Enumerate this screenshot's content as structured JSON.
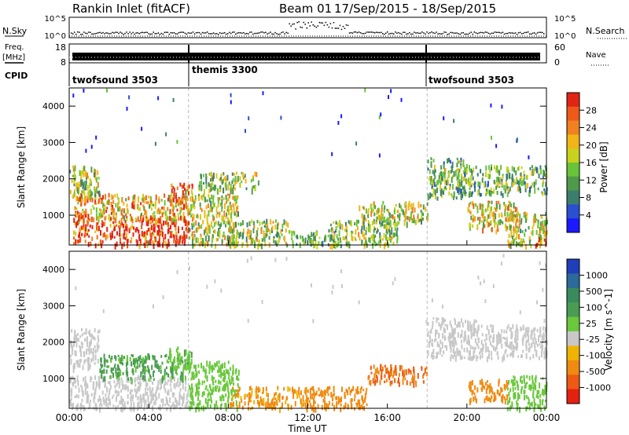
{
  "header": {
    "station": "Rankin Inlet (fitACF)",
    "beam": "Beam 01",
    "dates": "17/Sep/2015 - 18/Sep/2015"
  },
  "summary_panels": {
    "nsky": {
      "label": "N.Sky",
      "left_ticks": [
        "10^5",
        "10^0"
      ],
      "right_ticks": [
        "10^5",
        "10^0"
      ],
      "right_label": "N.Search"
    },
    "freq": {
      "label_line1": "Freq.",
      "label_line2": "[MHz]",
      "left_ticks": [
        "18",
        "8"
      ],
      "right_ticks": [
        "60",
        "0"
      ],
      "right_label": "Nave"
    },
    "cpid": {
      "label": "CPID",
      "segments": [
        {
          "name": "twofsound 3503",
          "start_hour": 0,
          "end_hour": 6
        },
        {
          "name": "themis 3300",
          "start_hour": 6,
          "end_hour": 18
        },
        {
          "name": "twofsound 3503",
          "start_hour": 18,
          "end_hour": 24
        }
      ]
    }
  },
  "x_axis": {
    "label": "Time UT",
    "ticks": [
      "00:00",
      "04:00",
      "08:00",
      "12:00",
      "16:00",
      "20:00",
      "00:00"
    ]
  },
  "chart_data": [
    {
      "type": "heatmap",
      "name": "power",
      "ylabel": "Slant Range [km]",
      "yticks": [
        "1000",
        "2000",
        "3000",
        "4000"
      ],
      "ylim": [
        180,
        4500
      ],
      "xlim_hours": [
        0,
        24
      ],
      "colorbar": {
        "label": "Power [dB]",
        "ticks": [
          "4",
          "8",
          "12",
          "16",
          "20",
          "24",
          "28"
        ],
        "colors": [
          "#1a1aff",
          "#2a4fd0",
          "#3c7e6e",
          "#4f9a4a",
          "#6ac43a",
          "#c8d21e",
          "#f2b418",
          "#f08020",
          "#ee5a18",
          "#e22414"
        ]
      },
      "regions": [
        {
          "t0": 0.2,
          "t1": 6.0,
          "r0": 200,
          "r1": 1000,
          "value": 28
        },
        {
          "t0": 0.2,
          "t1": 2.0,
          "r0": 900,
          "r1": 1700,
          "value": 22
        },
        {
          "t0": 0.0,
          "t1": 1.5,
          "r0": 1500,
          "r1": 2400,
          "value": 14
        },
        {
          "t0": 2.0,
          "t1": 6.0,
          "r0": 900,
          "r1": 1600,
          "value": 20
        },
        {
          "t0": 5.0,
          "t1": 6.2,
          "r0": 1300,
          "r1": 1900,
          "value": 24
        },
        {
          "t0": 6.0,
          "t1": 8.5,
          "r0": 200,
          "r1": 1600,
          "value": 16
        },
        {
          "t0": 6.5,
          "t1": 9.5,
          "r0": 1700,
          "r1": 2200,
          "value": 14
        },
        {
          "t0": 8.0,
          "t1": 11.0,
          "r0": 200,
          "r1": 900,
          "value": 14
        },
        {
          "t0": 11.0,
          "t1": 13.5,
          "r0": 200,
          "r1": 600,
          "value": 12
        },
        {
          "t0": 13.0,
          "t1": 16.5,
          "r0": 200,
          "r1": 900,
          "value": 14
        },
        {
          "t0": 14.5,
          "t1": 18.0,
          "r0": 800,
          "r1": 1400,
          "value": 16
        },
        {
          "t0": 18.0,
          "t1": 20.0,
          "r0": 1500,
          "r1": 2600,
          "value": 12
        },
        {
          "t0": 19.5,
          "t1": 24.0,
          "r0": 1600,
          "r1": 2400,
          "value": 12
        },
        {
          "t0": 20.0,
          "t1": 22.5,
          "r0": 600,
          "r1": 1400,
          "value": 18
        },
        {
          "t0": 22.0,
          "t1": 24.0,
          "r0": 200,
          "r1": 1100,
          "value": 16
        },
        {
          "t0": 23.3,
          "t1": 24.0,
          "r0": 200,
          "r1": 400,
          "value": 28
        }
      ]
    },
    {
      "type": "heatmap",
      "name": "velocity",
      "ylabel": "Slant Range [km]",
      "yticks": [
        "1000",
        "2000",
        "3000",
        "4000"
      ],
      "ylim": [
        180,
        4500
      ],
      "xlim_hours": [
        0,
        24
      ],
      "colorbar": {
        "label": "Velocity [m s^-1]",
        "ticks": [
          "1000",
          "500",
          "100",
          "25",
          "-25",
          "-100",
          "-500",
          "-1000"
        ],
        "colors": [
          "#1f3fb8",
          "#2b6a9a",
          "#3a8a5e",
          "#4a9c52",
          "#6ac83c",
          "#c8c8c8",
          "#f0b400",
          "#f08a10",
          "#ee5a14",
          "#e42010"
        ]
      },
      "regions": [
        {
          "t0": 0.0,
          "t1": 6.0,
          "r0": 200,
          "r1": 1100,
          "value": 0
        },
        {
          "t0": 0.0,
          "t1": 1.5,
          "r0": 1300,
          "r1": 2400,
          "value": 0
        },
        {
          "t0": 1.5,
          "t1": 6.0,
          "r0": 1000,
          "r1": 1700,
          "value": 120
        },
        {
          "t0": 5.0,
          "t1": 6.2,
          "r0": 1300,
          "r1": 1900,
          "value": 80
        },
        {
          "t0": 6.0,
          "t1": 8.5,
          "r0": 200,
          "r1": 1500,
          "value": 60
        },
        {
          "t0": 8.0,
          "t1": 12.0,
          "r0": 200,
          "r1": 800,
          "value": -120
        },
        {
          "t0": 12.0,
          "t1": 15.0,
          "r0": 200,
          "r1": 800,
          "value": -150
        },
        {
          "t0": 15.0,
          "t1": 18.0,
          "r0": 900,
          "r1": 1400,
          "value": -500
        },
        {
          "t0": 18.0,
          "t1": 20.5,
          "r0": 1600,
          "r1": 2700,
          "value": 0
        },
        {
          "t0": 20.5,
          "t1": 24.0,
          "r0": 1600,
          "r1": 2500,
          "value": 0
        },
        {
          "t0": 20.0,
          "t1": 22.0,
          "r0": 400,
          "r1": 1000,
          "value": -200
        },
        {
          "t0": 22.0,
          "t1": 24.0,
          "r0": 200,
          "r1": 1100,
          "value": 40
        }
      ]
    }
  ]
}
